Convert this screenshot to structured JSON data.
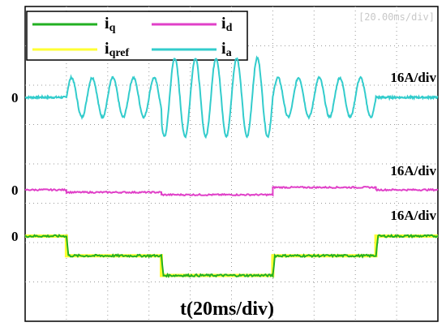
{
  "chart_data": {
    "type": "line",
    "title": "",
    "time_scale": "[20.00ms/div]",
    "xlabel": "t(20ms/div)",
    "legend": {
      "placement": "top-left",
      "entries": [
        {
          "key": "iq",
          "label": "i",
          "sub": "q",
          "color": "#22b022"
        },
        {
          "key": "id",
          "label": "i",
          "sub": "d",
          "color": "#e040c8"
        },
        {
          "key": "iqref",
          "label": "i",
          "sub": "qref",
          "color": "#ffff33"
        },
        {
          "key": "ia",
          "label": "i",
          "sub": "a",
          "color": "#33cccc"
        }
      ]
    },
    "grid": true,
    "x_unit": "ms",
    "xlim": [
      0,
      200
    ],
    "channels": {
      "ia": {
        "scale": "16A/div",
        "zero_label": "0"
      },
      "id": {
        "scale": "16A/div",
        "zero_label": "0"
      },
      "iq": {
        "scale": "16A/div",
        "zero_label": "0"
      }
    },
    "series": [
      {
        "name": "ia",
        "description_values": "sinusoid, amplitude in A",
        "segments": [
          {
            "t_start": 0,
            "t_end": 20,
            "amplitude": 0
          },
          {
            "t_start": 20,
            "t_end": 66,
            "amplitude": 8
          },
          {
            "t_start": 66,
            "t_end": 120,
            "amplitude": 16
          },
          {
            "t_start": 120,
            "t_end": 170,
            "amplitude": 8
          },
          {
            "t_start": 170,
            "t_end": 200,
            "amplitude": 0
          }
        ],
        "period_ms": 10
      },
      {
        "name": "id",
        "points": [
          [
            0,
            0
          ],
          [
            20,
            0
          ],
          [
            20,
            -1
          ],
          [
            66,
            -1
          ],
          [
            66,
            -2
          ],
          [
            120,
            -2
          ],
          [
            120,
            1
          ],
          [
            170,
            1
          ],
          [
            170,
            0
          ],
          [
            200,
            0
          ]
        ]
      },
      {
        "name": "iq",
        "points": [
          [
            0,
            0
          ],
          [
            20,
            0
          ],
          [
            21,
            -8
          ],
          [
            66,
            -8
          ],
          [
            67,
            -16
          ],
          [
            120,
            -16
          ],
          [
            121,
            -8
          ],
          [
            170,
            -8
          ],
          [
            171,
            0
          ],
          [
            200,
            0
          ]
        ]
      },
      {
        "name": "iqref",
        "points": [
          [
            0,
            0
          ],
          [
            20,
            0
          ],
          [
            20,
            -8
          ],
          [
            66,
            -8
          ],
          [
            66,
            -16
          ],
          [
            120,
            -16
          ],
          [
            120,
            -8
          ],
          [
            170,
            -8
          ],
          [
            170,
            0
          ],
          [
            200,
            0
          ]
        ]
      }
    ]
  }
}
